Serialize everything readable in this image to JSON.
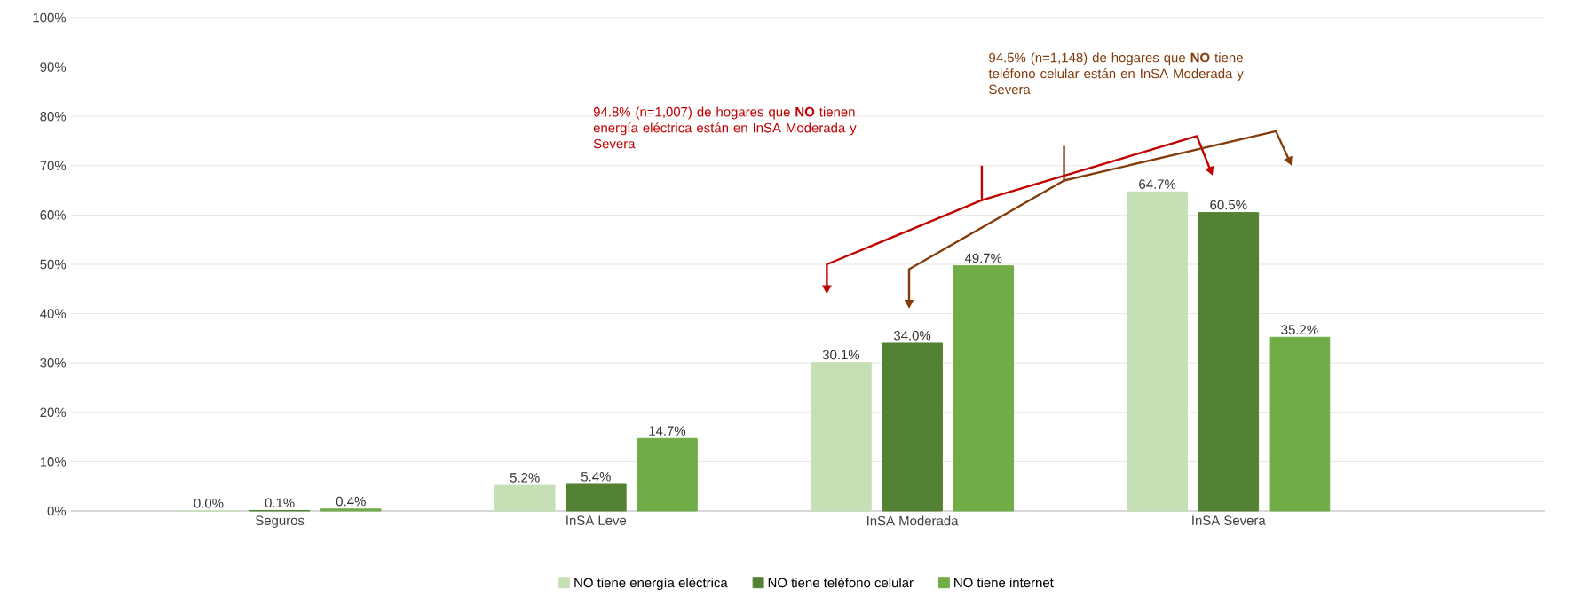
{
  "chart_data": {
    "type": "bar",
    "categories": [
      "Seguros",
      "InSA Leve",
      "InSA Moderada",
      "InSA Severa"
    ],
    "series": [
      {
        "name": "NO tiene energía eléctrica",
        "color": "#c5e0b4",
        "values": [
          0.0,
          5.2,
          30.1,
          64.7
        ],
        "value_labels": [
          "0.0%",
          "5.2%",
          "30.1%",
          "64.7%"
        ]
      },
      {
        "name": "NO tiene teléfono celular",
        "color": "#548235",
        "values": [
          0.1,
          5.4,
          34.0,
          60.5
        ],
        "value_labels": [
          "0.1%",
          "5.4%",
          "34.0%",
          "60.5%"
        ]
      },
      {
        "name": "NO tiene internet",
        "color": "#70ad47",
        "values": [
          0.4,
          14.7,
          49.7,
          35.2
        ],
        "value_labels": [
          "0.4%",
          "14.7%",
          "49.7%",
          "35.2%"
        ]
      }
    ],
    "ylim": [
      0,
      100
    ],
    "yticks": [
      {
        "value": 0,
        "label": "0%"
      },
      {
        "value": 10,
        "label": "10%"
      },
      {
        "value": 20,
        "label": "20%"
      },
      {
        "value": 30,
        "label": "30%"
      },
      {
        "value": 40,
        "label": "40%"
      },
      {
        "value": 50,
        "label": "50%"
      },
      {
        "value": 60,
        "label": "60%"
      },
      {
        "value": 70,
        "label": "70%"
      },
      {
        "value": 80,
        "label": "80%"
      },
      {
        "value": 90,
        "label": "90%"
      },
      {
        "value": 100,
        "label": "100%"
      }
    ],
    "grid": "y",
    "legend": "bottom",
    "annotations": [
      "94.8% (n=1,007) de hogares que **NO** tienen energía eléctrica están en InSA Moderada y Severa",
      "94.5% (n=1,148) de hogares que **NO** tiene teléfono celular están en InSA Moderada y Severa"
    ]
  }
}
